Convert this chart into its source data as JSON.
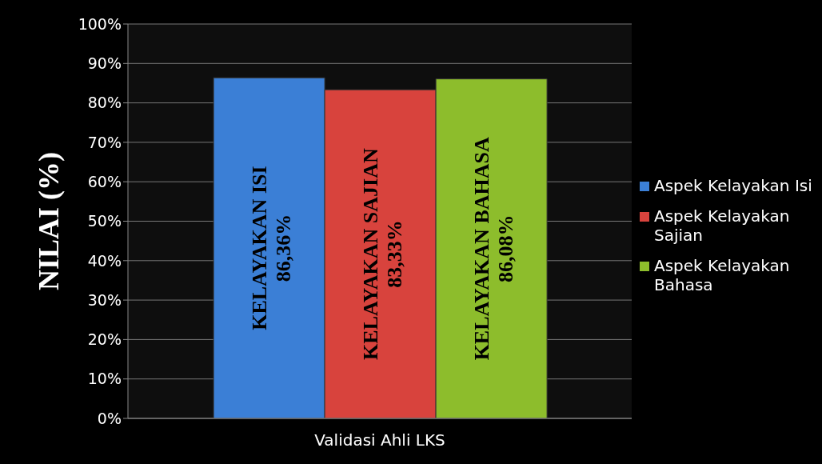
{
  "chart_data": {
    "type": "bar",
    "ylabel": "NILAI (%)",
    "categories": [
      "Validasi Ahli LKS"
    ],
    "series": [
      {
        "name": "Aspek Kelayakan Isi",
        "color": "#3b7fd6",
        "values": [
          86.36
        ],
        "value_labels": [
          "86,36%"
        ]
      },
      {
        "name": "Aspek Kelayakan Sajian",
        "color": "#d8433d",
        "values": [
          83.33
        ],
        "value_labels": [
          "83,33%"
        ]
      },
      {
        "name": "Aspek Kelayakan Bahasa",
        "color": "#8dbd2c",
        "values": [
          86.08
        ],
        "value_labels": [
          "86,08%"
        ]
      }
    ],
    "annotations": [
      "KELAYAKAN ISI",
      "KELAYAKAN SAJIAN",
      "KELAYAKAN BAHASA"
    ],
    "ylim": [
      0,
      100
    ],
    "yticks": [
      {
        "value": 0,
        "label": "0%"
      },
      {
        "value": 10,
        "label": "10%"
      },
      {
        "value": 20,
        "label": "20%"
      },
      {
        "value": 30,
        "label": "30%"
      },
      {
        "value": 40,
        "label": "40%"
      },
      {
        "value": 50,
        "label": "50%"
      },
      {
        "value": 60,
        "label": "60%"
      },
      {
        "value": 70,
        "label": "70%"
      },
      {
        "value": 80,
        "label": "80%"
      },
      {
        "value": 90,
        "label": "90%"
      },
      {
        "value": 100,
        "label": "100%"
      }
    ],
    "grid": "y",
    "legend": "right"
  }
}
